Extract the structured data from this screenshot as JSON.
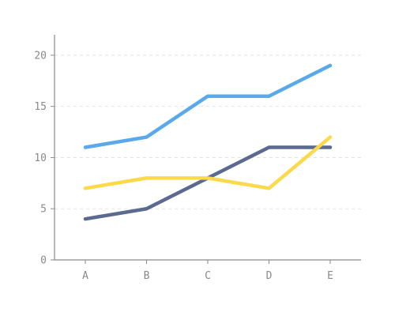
{
  "chart_data": {
    "type": "line",
    "categories": [
      "A",
      "B",
      "C",
      "D",
      "E"
    ],
    "series": [
      {
        "values": [
          11,
          12,
          16,
          16,
          19
        ],
        "color": "#5aa9ea"
      },
      {
        "values": [
          4,
          5,
          8,
          11,
          11
        ],
        "color": "#5a6a90"
      },
      {
        "values": [
          7,
          8,
          8,
          7,
          12
        ],
        "color": "#fbd94a"
      }
    ],
    "ylim": [
      0,
      22
    ],
    "yticks": [
      0,
      5,
      10,
      15,
      20
    ],
    "grid": true,
    "legend": "none",
    "colors": {
      "axis": "#8a8a8a",
      "grid": "#e3e3e3",
      "text": "#8a8a8a"
    }
  }
}
